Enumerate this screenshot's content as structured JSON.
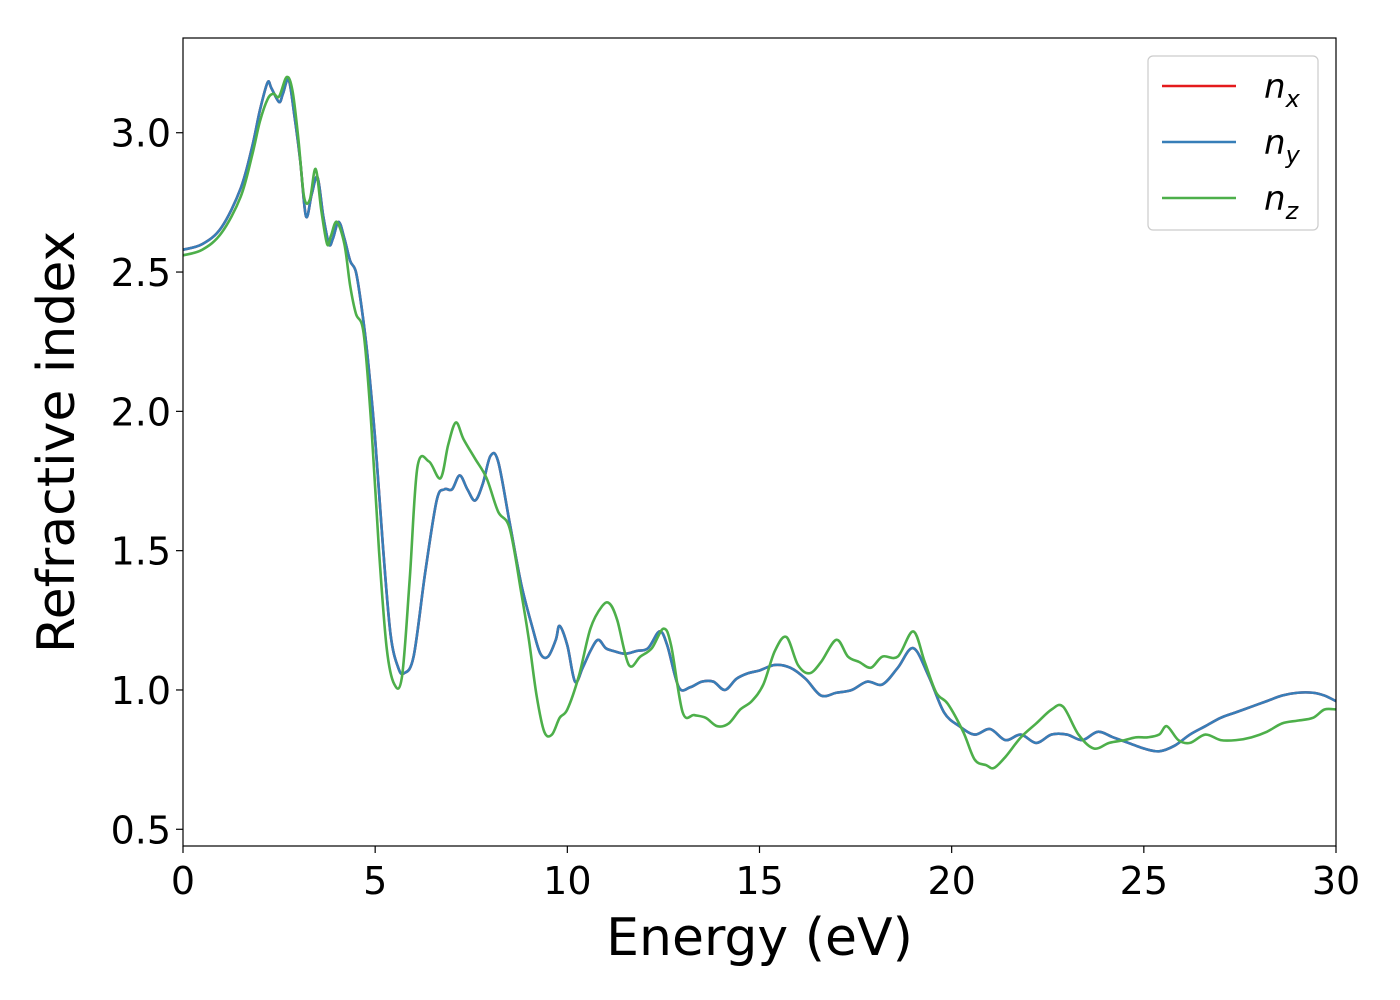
{
  "chart_data": {
    "type": "line",
    "xlabel": "Energy (eV)",
    "ylabel": "Refractive index",
    "xlim": [
      0,
      30
    ],
    "ylim": [
      0.44,
      3.34
    ],
    "xticks": [
      0,
      5,
      10,
      15,
      20,
      25,
      30
    ],
    "yticks": [
      0.5,
      1.0,
      1.5,
      2.0,
      2.5,
      3.0
    ],
    "grid": false,
    "legend_position": "top-right",
    "series": [
      {
        "name": "n",
        "subscript": "x",
        "color": "#e41a1c",
        "x": [
          0,
          0.5,
          1.0,
          1.5,
          1.8,
          2.0,
          2.2,
          2.3,
          2.5,
          2.6,
          2.75,
          2.9,
          3.05,
          3.2,
          3.35,
          3.5,
          3.65,
          3.8,
          3.9,
          4.05,
          4.2,
          4.35,
          4.5,
          4.65,
          4.8,
          5.0,
          5.2,
          5.4,
          5.6,
          5.75,
          6.0,
          6.3,
          6.6,
          6.8,
          7.0,
          7.2,
          7.4,
          7.6,
          7.8,
          8.0,
          8.2,
          8.5,
          8.8,
          9.1,
          9.3,
          9.5,
          9.7,
          9.8,
          10.0,
          10.2,
          10.4,
          10.6,
          10.8,
          11.0,
          11.2,
          11.5,
          11.8,
          12.1,
          12.4,
          12.6,
          12.9,
          13.2,
          13.5,
          13.8,
          14.1,
          14.4,
          14.7,
          15.0,
          15.4,
          15.8,
          16.2,
          16.6,
          17.0,
          17.4,
          17.8,
          18.2,
          18.6,
          19.0,
          19.4,
          19.8,
          20.2,
          20.6,
          21.0,
          21.4,
          21.8,
          22.2,
          22.6,
          23.0,
          23.4,
          23.8,
          24.2,
          24.6,
          25.0,
          25.4,
          25.8,
          26.2,
          26.6,
          27.0,
          27.4,
          27.8,
          28.2,
          28.6,
          29.0,
          29.4,
          29.7,
          30.0
        ],
        "y": [
          2.58,
          2.6,
          2.66,
          2.8,
          2.95,
          3.08,
          3.18,
          3.16,
          3.11,
          3.14,
          3.19,
          3.06,
          2.9,
          2.7,
          2.78,
          2.84,
          2.7,
          2.6,
          2.62,
          2.68,
          2.62,
          2.54,
          2.5,
          2.37,
          2.2,
          1.9,
          1.52,
          1.2,
          1.08,
          1.06,
          1.12,
          1.42,
          1.68,
          1.72,
          1.72,
          1.77,
          1.72,
          1.68,
          1.74,
          1.84,
          1.82,
          1.6,
          1.38,
          1.22,
          1.13,
          1.12,
          1.18,
          1.23,
          1.16,
          1.03,
          1.08,
          1.14,
          1.18,
          1.15,
          1.14,
          1.13,
          1.14,
          1.15,
          1.21,
          1.16,
          1.01,
          1.01,
          1.03,
          1.03,
          1.0,
          1.04,
          1.06,
          1.07,
          1.09,
          1.08,
          1.04,
          0.98,
          0.99,
          1.0,
          1.03,
          1.02,
          1.08,
          1.15,
          1.05,
          0.92,
          0.87,
          0.84,
          0.86,
          0.82,
          0.84,
          0.81,
          0.84,
          0.84,
          0.82,
          0.85,
          0.83,
          0.81,
          0.79,
          0.78,
          0.8,
          0.84,
          0.87,
          0.9,
          0.92,
          0.94,
          0.96,
          0.98,
          0.99,
          0.99,
          0.98,
          0.96
        ]
      },
      {
        "name": "n",
        "subscript": "y",
        "color": "#377eb8",
        "x": [
          0,
          0.5,
          1.0,
          1.5,
          1.8,
          2.0,
          2.2,
          2.3,
          2.5,
          2.6,
          2.75,
          2.9,
          3.05,
          3.2,
          3.35,
          3.5,
          3.65,
          3.8,
          3.9,
          4.05,
          4.2,
          4.35,
          4.5,
          4.65,
          4.8,
          5.0,
          5.2,
          5.4,
          5.6,
          5.75,
          6.0,
          6.3,
          6.6,
          6.8,
          7.0,
          7.2,
          7.4,
          7.6,
          7.8,
          8.0,
          8.2,
          8.5,
          8.8,
          9.1,
          9.3,
          9.5,
          9.7,
          9.8,
          10.0,
          10.2,
          10.4,
          10.6,
          10.8,
          11.0,
          11.2,
          11.5,
          11.8,
          12.1,
          12.4,
          12.6,
          12.9,
          13.2,
          13.5,
          13.8,
          14.1,
          14.4,
          14.7,
          15.0,
          15.4,
          15.8,
          16.2,
          16.6,
          17.0,
          17.4,
          17.8,
          18.2,
          18.6,
          19.0,
          19.4,
          19.8,
          20.2,
          20.6,
          21.0,
          21.4,
          21.8,
          22.2,
          22.6,
          23.0,
          23.4,
          23.8,
          24.2,
          24.6,
          25.0,
          25.4,
          25.8,
          26.2,
          26.6,
          27.0,
          27.4,
          27.8,
          28.2,
          28.6,
          29.0,
          29.4,
          29.7,
          30.0
        ],
        "y": [
          2.58,
          2.6,
          2.66,
          2.8,
          2.95,
          3.08,
          3.18,
          3.16,
          3.11,
          3.14,
          3.19,
          3.06,
          2.9,
          2.7,
          2.78,
          2.84,
          2.7,
          2.6,
          2.62,
          2.68,
          2.62,
          2.54,
          2.5,
          2.37,
          2.2,
          1.9,
          1.52,
          1.2,
          1.08,
          1.06,
          1.12,
          1.42,
          1.68,
          1.72,
          1.72,
          1.77,
          1.72,
          1.68,
          1.74,
          1.84,
          1.82,
          1.6,
          1.38,
          1.22,
          1.13,
          1.12,
          1.18,
          1.23,
          1.16,
          1.03,
          1.08,
          1.14,
          1.18,
          1.15,
          1.14,
          1.13,
          1.14,
          1.15,
          1.21,
          1.16,
          1.01,
          1.01,
          1.03,
          1.03,
          1.0,
          1.04,
          1.06,
          1.07,
          1.09,
          1.08,
          1.04,
          0.98,
          0.99,
          1.0,
          1.03,
          1.02,
          1.08,
          1.15,
          1.05,
          0.92,
          0.87,
          0.84,
          0.86,
          0.82,
          0.84,
          0.81,
          0.84,
          0.84,
          0.82,
          0.85,
          0.83,
          0.81,
          0.79,
          0.78,
          0.8,
          0.84,
          0.87,
          0.9,
          0.92,
          0.94,
          0.96,
          0.98,
          0.99,
          0.99,
          0.98,
          0.96
        ]
      },
      {
        "name": "n",
        "subscript": "z",
        "color": "#4daf4a",
        "x": [
          0,
          0.5,
          1.0,
          1.5,
          1.8,
          2.0,
          2.2,
          2.35,
          2.5,
          2.7,
          2.85,
          3.0,
          3.15,
          3.3,
          3.45,
          3.6,
          3.75,
          3.85,
          4.0,
          4.2,
          4.35,
          4.5,
          4.7,
          4.9,
          5.1,
          5.3,
          5.5,
          5.7,
          5.9,
          6.1,
          6.4,
          6.7,
          6.9,
          7.1,
          7.3,
          7.6,
          7.9,
          8.2,
          8.5,
          8.8,
          9.0,
          9.2,
          9.4,
          9.6,
          9.8,
          10.0,
          10.3,
          10.6,
          10.9,
          11.1,
          11.3,
          11.6,
          11.9,
          12.2,
          12.5,
          12.7,
          13.0,
          13.3,
          13.6,
          13.9,
          14.2,
          14.5,
          14.8,
          15.1,
          15.4,
          15.7,
          16.0,
          16.3,
          16.6,
          17.0,
          17.3,
          17.6,
          17.9,
          18.2,
          18.6,
          19.0,
          19.3,
          19.6,
          19.9,
          20.3,
          20.6,
          20.9,
          21.1,
          21.4,
          21.8,
          22.2,
          22.6,
          22.9,
          23.3,
          23.7,
          24.1,
          24.5,
          24.8,
          25.1,
          25.4,
          25.6,
          25.9,
          26.2,
          26.6,
          27.0,
          27.4,
          27.8,
          28.2,
          28.6,
          29.0,
          29.4,
          29.7,
          30.0
        ],
        "y": [
          2.56,
          2.58,
          2.64,
          2.77,
          2.92,
          3.04,
          3.12,
          3.14,
          3.13,
          3.2,
          3.15,
          2.98,
          2.77,
          2.76,
          2.87,
          2.72,
          2.6,
          2.63,
          2.68,
          2.6,
          2.45,
          2.35,
          2.28,
          1.95,
          1.5,
          1.15,
          1.02,
          1.05,
          1.4,
          1.8,
          1.82,
          1.76,
          1.88,
          1.96,
          1.9,
          1.83,
          1.76,
          1.64,
          1.58,
          1.35,
          1.18,
          0.98,
          0.85,
          0.84,
          0.9,
          0.93,
          1.05,
          1.22,
          1.3,
          1.31,
          1.25,
          1.09,
          1.12,
          1.15,
          1.22,
          1.16,
          0.92,
          0.91,
          0.9,
          0.87,
          0.88,
          0.93,
          0.96,
          1.02,
          1.14,
          1.19,
          1.09,
          1.06,
          1.1,
          1.18,
          1.12,
          1.1,
          1.08,
          1.12,
          1.12,
          1.21,
          1.1,
          0.99,
          0.95,
          0.85,
          0.75,
          0.73,
          0.72,
          0.76,
          0.83,
          0.88,
          0.93,
          0.94,
          0.84,
          0.79,
          0.81,
          0.82,
          0.83,
          0.83,
          0.84,
          0.87,
          0.82,
          0.81,
          0.84,
          0.82,
          0.82,
          0.83,
          0.85,
          0.88,
          0.89,
          0.9,
          0.93,
          0.93
        ]
      }
    ]
  }
}
